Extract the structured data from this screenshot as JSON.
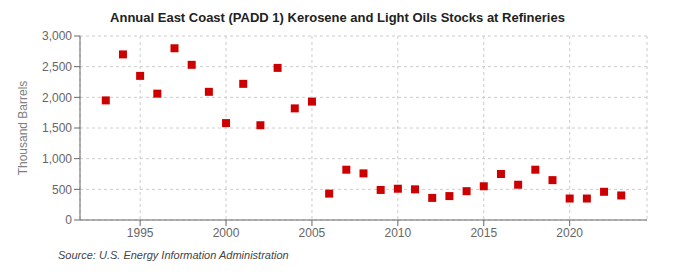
{
  "chart_data": {
    "type": "scatter",
    "title": "Annual East Coast (PADD 1) Kerosene and Light Oils Stocks at Refineries",
    "ylabel": "Thousand Barrels",
    "source": "Source: U.S. Energy Information Administration",
    "color": "#cc0000",
    "marker": "square",
    "grid": true,
    "xlim": [
      1991.5,
      2024.5
    ],
    "xticks": [
      1995,
      2000,
      2005,
      2010,
      2015,
      2020
    ],
    "ylim": [
      0,
      3000
    ],
    "yticks": [
      0,
      500,
      {
        "value": 1000,
        "label": "1,000"
      },
      {
        "value": 1500,
        "label": "1,500"
      },
      {
        "value": 2000,
        "label": "2,000"
      },
      {
        "value": 2500,
        "label": "2,500"
      },
      {
        "value": 3000,
        "label": "3,000"
      }
    ],
    "x": [
      1993,
      1994,
      1995,
      1996,
      1997,
      1998,
      1999,
      2000,
      2001,
      2002,
      2003,
      2004,
      2005,
      2006,
      2007,
      2008,
      2009,
      2010,
      2011,
      2012,
      2013,
      2014,
      2015,
      2016,
      2017,
      2018,
      2019,
      2020,
      2021,
      2022,
      2023
    ],
    "values": [
      1950,
      2700,
      2350,
      2060,
      2800,
      2530,
      2090,
      1580,
      2220,
      1545,
      2480,
      1820,
      1930,
      430,
      820,
      760,
      490,
      510,
      500,
      360,
      390,
      470,
      550,
      750,
      575,
      820,
      650,
      350,
      350,
      460,
      400
    ]
  }
}
